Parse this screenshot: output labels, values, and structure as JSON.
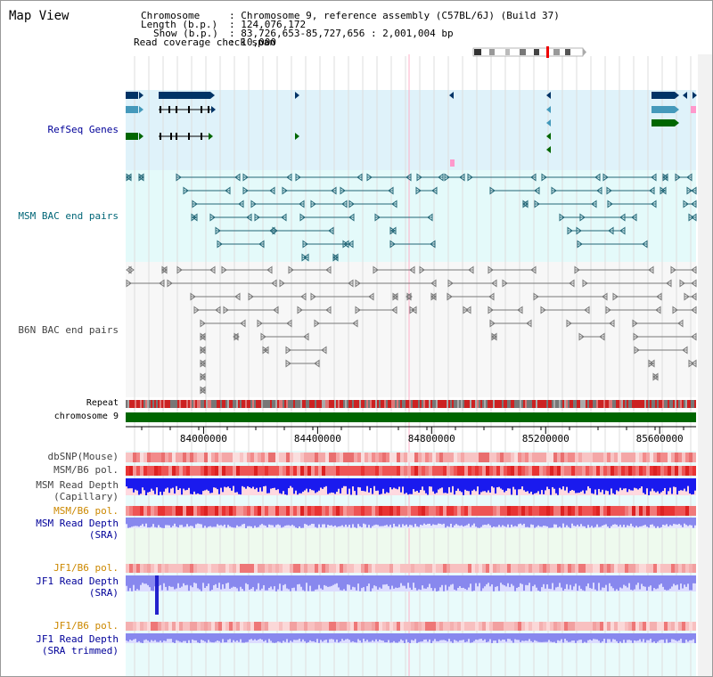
{
  "title": "Map View",
  "header": {
    "chromosome_key": "Chromosome",
    "chromosome_val": ": Chromosome 9, reference assembly (C57BL/6J) (Build 37)",
    "length_key": "Length (b.p.)",
    "length_val": ": 124,076,172",
    "show_key": "Show (b.p.)",
    "show_val": ": 83,726,653-85,727,656 : 2,001,004 bp",
    "coverage_key": "Read coverage check span",
    "coverage_val": ": 10,000"
  },
  "tracks": {
    "refseq": "RefSeq Genes",
    "msm_bac": "MSM BAC end pairs",
    "b6n_bac": "B6N BAC end pairs",
    "repeat": "Repeat",
    "chromosome": "chromosome 9",
    "dbsnp": "dbSNP(Mouse)",
    "msm_b6_pol_1": "MSM/B6 pol.",
    "msm_depth_cap_1": "MSM Read Depth",
    "msm_depth_cap_2": "(Capillary)",
    "msm_b6_pol_2": "MSM/B6 pol.",
    "msm_depth_sra_1": "MSM Read Depth",
    "msm_depth_sra_2": "(SRA)",
    "jf1_pol_1": "JF1/B6 pol.",
    "jf1_depth_sra_1": "JF1 Read Depth",
    "jf1_depth_sra_2": "(SRA)",
    "jf1_pol_2": "JF1/B6 pol.",
    "jf1_depth_trim_1": "JF1 Read Depth",
    "jf1_depth_trim_2": "(SRA trimmed)"
  },
  "axis": {
    "ticks": [
      "84000000",
      "84400000",
      "84800000",
      "85200000",
      "85600000"
    ],
    "tick_values": [
      84000000,
      84400000,
      84800000,
      85200000,
      85600000
    ],
    "start_bp": 83726653,
    "end_bp": 85727656
  },
  "colors": {
    "refseq_bg": "#dff2fa",
    "msm_bg": "#e4fafa",
    "b6n_bg": "#f5f5f5",
    "gene_dark": "#003366",
    "gene_mid": "#4499bb",
    "gene_green": "#006600",
    "msm_pair": "#226677",
    "b6n_pair": "#777777",
    "chromosome": "#006600",
    "label_refseq": "#000099",
    "label_msm": "#006677",
    "label_b6n": "#444444",
    "label_pol": "#cc8800"
  }
}
